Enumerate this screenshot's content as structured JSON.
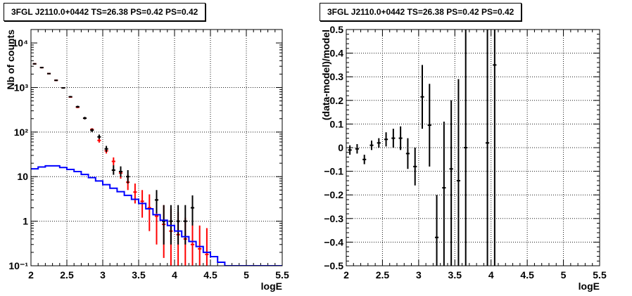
{
  "chart_data": [
    {
      "type": "histogram",
      "title": "3FGL J2110.0+0442 TS=26.38 PS=0.42 PS=0.42",
      "xlabel": "logE",
      "ylabel": "Nb of counts",
      "xlim": [
        2,
        5.5
      ],
      "ylim": [
        0.1,
        20000
      ],
      "yscale": "log",
      "grid": true,
      "xticks": [
        "2",
        "2.5",
        "3",
        "3.5",
        "4",
        "4.5",
        "5",
        "5.5"
      ],
      "yticks": [
        {
          "value": 0.1,
          "label": "10⁻¹"
        },
        {
          "value": 1,
          "label": "1"
        },
        {
          "value": 10,
          "label": "10"
        },
        {
          "value": 100,
          "label": "10²"
        },
        {
          "value": 1000,
          "label": "10³"
        },
        {
          "value": 10000,
          "label": "10⁴"
        }
      ],
      "bin_width": 0.1,
      "series": [
        {
          "color": "#ff0000",
          "style": "points",
          "points": [
            {
              "x": 2.05,
              "y": 3400,
              "lo": 3300,
              "hi": 3500
            },
            {
              "x": 2.15,
              "y": 2800,
              "lo": 2700,
              "hi": 2900
            },
            {
              "x": 2.25,
              "y": 2050,
              "lo": 1990,
              "hi": 2110
            },
            {
              "x": 2.35,
              "y": 1450,
              "lo": 1400,
              "hi": 1500
            },
            {
              "x": 2.45,
              "y": 980,
              "lo": 950,
              "hi": 1010
            },
            {
              "x": 2.55,
              "y": 610,
              "lo": 590,
              "hi": 630
            },
            {
              "x": 2.65,
              "y": 360,
              "lo": 345,
              "hi": 375
            },
            {
              "x": 2.75,
              "y": 205,
              "lo": 195,
              "hi": 215
            },
            {
              "x": 2.85,
              "y": 115,
              "lo": 108,
              "hi": 122
            },
            {
              "x": 2.95,
              "y": 65,
              "lo": 58,
              "hi": 72
            },
            {
              "x": 3.05,
              "y": 38,
              "lo": 33,
              "hi": 44
            },
            {
              "x": 3.15,
              "y": 22,
              "lo": 18,
              "hi": 27
            },
            {
              "x": 3.25,
              "y": 12,
              "lo": 9,
              "hi": 16
            },
            {
              "x": 3.35,
              "y": 7.5,
              "lo": 5,
              "hi": 11
            },
            {
              "x": 3.45,
              "y": 4.5,
              "lo": 2.5,
              "hi": 7
            },
            {
              "x": 3.55,
              "y": 2.8,
              "lo": 1.2,
              "hi": 5
            },
            {
              "x": 3.65,
              "y": 2.0,
              "lo": 0.6,
              "hi": 4
            },
            {
              "x": 3.75,
              "y": 1.3,
              "lo": 0.3,
              "hi": 3
            },
            {
              "x": 3.85,
              "y": 0.85,
              "lo": 0.15,
              "hi": 2.3
            },
            {
              "x": 3.95,
              "y": 0.6,
              "lo": 0.1,
              "hi": 1.9
            },
            {
              "x": 4.05,
              "y": 0.5,
              "lo": 0.1,
              "hi": 1.6
            },
            {
              "x": 4.15,
              "y": 0.4,
              "lo": 0.1,
              "hi": 1.2
            },
            {
              "x": 4.25,
              "y": 0.3,
              "lo": 0.1,
              "hi": 0.95
            },
            {
              "x": 4.35,
              "y": 0.24,
              "lo": 0.1,
              "hi": 0.8
            },
            {
              "x": 4.45,
              "y": 0.18,
              "lo": 0.1,
              "hi": 0.7
            }
          ]
        },
        {
          "color": "#000000",
          "style": "points",
          "points": [
            {
              "x": 2.05,
              "y": 3400,
              "lo": 3300,
              "hi": 3500
            },
            {
              "x": 2.15,
              "y": 2800,
              "lo": 2700,
              "hi": 2900
            },
            {
              "x": 2.25,
              "y": 2050,
              "lo": 1990,
              "hi": 2110
            },
            {
              "x": 2.35,
              "y": 1450,
              "lo": 1400,
              "hi": 1500
            },
            {
              "x": 2.45,
              "y": 980,
              "lo": 950,
              "hi": 1010
            },
            {
              "x": 2.55,
              "y": 620,
              "lo": 600,
              "hi": 645
            },
            {
              "x": 2.65,
              "y": 370,
              "lo": 352,
              "hi": 390
            },
            {
              "x": 2.75,
              "y": 205,
              "lo": 192,
              "hi": 220
            },
            {
              "x": 2.85,
              "y": 110,
              "lo": 100,
              "hi": 120
            },
            {
              "x": 2.95,
              "y": 78,
              "lo": 70,
              "hi": 88
            },
            {
              "x": 3.05,
              "y": 42,
              "lo": 36,
              "hi": 49
            },
            {
              "x": 3.15,
              "y": 14,
              "lo": 11,
              "hi": 18
            },
            {
              "x": 3.25,
              "y": 13,
              "lo": 10,
              "hi": 17
            },
            {
              "x": 3.35,
              "y": 10,
              "lo": 7,
              "hi": 14
            },
            {
              "x": 3.75,
              "y": 3,
              "lo": 1.5,
              "hi": 5
            },
            {
              "x": 3.85,
              "y": 1,
              "lo": 0.3,
              "hi": 2.3
            },
            {
              "x": 3.95,
              "y": 1,
              "lo": 0.3,
              "hi": 2.3
            },
            {
              "x": 4.05,
              "y": 1,
              "lo": 0.3,
              "hi": 2.3
            },
            {
              "x": 4.15,
              "y": 1,
              "lo": 0.3,
              "hi": 2.3
            },
            {
              "x": 4.25,
              "y": 2,
              "lo": 0.8,
              "hi": 3.8
            }
          ]
        },
        {
          "color": "#0000ff",
          "style": "step",
          "values": [
            {
              "x": 2.0,
              "y": 15
            },
            {
              "x": 2.1,
              "y": 16.5
            },
            {
              "x": 2.2,
              "y": 17.5
            },
            {
              "x": 2.3,
              "y": 17.5
            },
            {
              "x": 2.4,
              "y": 16
            },
            {
              "x": 2.5,
              "y": 14.5
            },
            {
              "x": 2.6,
              "y": 13
            },
            {
              "x": 2.7,
              "y": 11.2
            },
            {
              "x": 2.8,
              "y": 9.5
            },
            {
              "x": 2.9,
              "y": 8
            },
            {
              "x": 3.0,
              "y": 6.6
            },
            {
              "x": 3.1,
              "y": 5.5
            },
            {
              "x": 3.2,
              "y": 4.6
            },
            {
              "x": 3.3,
              "y": 3.8
            },
            {
              "x": 3.4,
              "y": 3.1
            },
            {
              "x": 3.5,
              "y": 2.5
            },
            {
              "x": 3.6,
              "y": 1.9
            },
            {
              "x": 3.7,
              "y": 1.4
            },
            {
              "x": 3.8,
              "y": 1.05
            },
            {
              "x": 3.9,
              "y": 0.8
            },
            {
              "x": 4.0,
              "y": 0.6
            },
            {
              "x": 4.1,
              "y": 0.45
            },
            {
              "x": 4.2,
              "y": 0.35
            },
            {
              "x": 4.3,
              "y": 0.27
            },
            {
              "x": 4.4,
              "y": 0.2
            },
            {
              "x": 4.5,
              "y": 0.16
            },
            {
              "x": 4.6,
              "y": 0.12
            },
            {
              "x": 4.7,
              "y": 0.1
            },
            {
              "x": 5.5,
              "y": 0.1
            }
          ]
        }
      ]
    },
    {
      "type": "scatter",
      "title": "3FGL J2110.0+0442 TS=26.38 PS=0.42 PS=0.42",
      "xlabel": "logE",
      "ylabel": "(data-model)/model",
      "xlim": [
        2,
        5.5
      ],
      "ylim": [
        -0.5,
        0.5
      ],
      "grid": true,
      "xticks": [
        "2",
        "2.5",
        "3",
        "3.5",
        "4",
        "4.5",
        "5",
        "5.5"
      ],
      "yticks": [
        "−0.5",
        "−0.4",
        "−0.3",
        "−0.2",
        "−0.1",
        "0",
        "0.1",
        "0.2",
        "0.3",
        "0.4",
        "0.5"
      ],
      "bin_width": 0.1,
      "series": [
        {
          "color": "#000000",
          "points": [
            {
              "x": 2.05,
              "y": -0.01,
              "lo": -0.03,
              "hi": 0.01
            },
            {
              "x": 2.15,
              "y": -0.005,
              "lo": -0.025,
              "hi": 0.015
            },
            {
              "x": 2.25,
              "y": -0.05,
              "lo": -0.07,
              "hi": -0.03
            },
            {
              "x": 2.35,
              "y": 0.01,
              "lo": -0.01,
              "hi": 0.03
            },
            {
              "x": 2.45,
              "y": 0.02,
              "lo": 0.0,
              "hi": 0.04
            },
            {
              "x": 2.55,
              "y": 0.035,
              "lo": 0.005,
              "hi": 0.065
            },
            {
              "x": 2.65,
              "y": 0.04,
              "lo": 0.0,
              "hi": 0.08
            },
            {
              "x": 2.75,
              "y": 0.04,
              "lo": -0.01,
              "hi": 0.09
            },
            {
              "x": 2.85,
              "y": -0.025,
              "lo": -0.09,
              "hi": 0.04
            },
            {
              "x": 2.95,
              "y": -0.08,
              "lo": -0.16,
              "hi": 0.0
            },
            {
              "x": 3.05,
              "y": 0.215,
              "lo": 0.08,
              "hi": 0.35
            },
            {
              "x": 3.15,
              "y": 0.095,
              "lo": -0.08,
              "hi": 0.27
            },
            {
              "x": 3.25,
              "y": -0.38,
              "lo": -0.5,
              "hi": -0.2
            },
            {
              "x": 3.35,
              "y": -0.17,
              "lo": -0.5,
              "hi": 0.11
            },
            {
              "x": 3.45,
              "y": -0.09,
              "lo": -0.5,
              "hi": 0.2
            },
            {
              "x": 3.55,
              "y": -0.14,
              "lo": -0.5,
              "hi": 0.29
            },
            {
              "x": 3.65,
              "y": 0.0,
              "lo": -0.5,
              "hi": 0.5
            },
            {
              "x": 3.95,
              "y": 0.02,
              "lo": -0.5,
              "hi": 0.5
            },
            {
              "x": 4.05,
              "y": 0.35,
              "lo": -0.5,
              "hi": 0.5
            }
          ]
        }
      ]
    }
  ]
}
